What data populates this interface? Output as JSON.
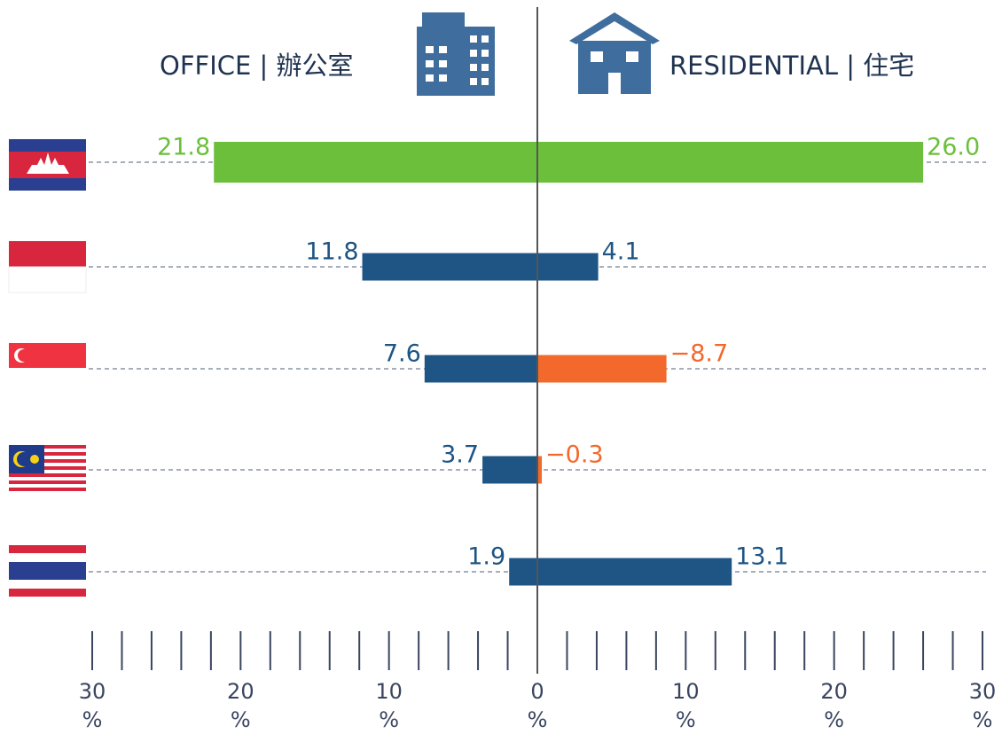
{
  "chart_data": {
    "type": "butterfly",
    "categories": [
      null,
      null,
      null,
      null,
      null
    ],
    "series": [
      {
        "name": "OFFICE | 辦公室",
        "axis": "x",
        "color": "#1e5585",
        "colors": [
          "#6bbf3b",
          "#1e5585",
          "#1e5585",
          "#1e5585",
          "#1e5585"
        ],
        "values": [
          21.8,
          11.8,
          7.6,
          3.7,
          1.9
        ],
        "value_labels": [
          "21.8",
          "11.8",
          "7.6",
          "3.7",
          "1.9"
        ]
      },
      {
        "name": "RESIDENTIAL | 住宅",
        "axis": "x2",
        "color": "#1e5585",
        "colors": [
          "#6bbf3b",
          "#1e5585",
          "#f2692b",
          "#f2692b",
          "#1e5585"
        ],
        "values": [
          26.0,
          4.1,
          -8.7,
          -0.3,
          13.1
        ],
        "value_labels": [
          "26.0",
          "4.1",
          "−8.7",
          "−0.3",
          "13.1"
        ]
      }
    ],
    "xlim": [
      30,
      0
    ],
    "xticks": [
      {
        "value": 30,
        "label": "30 %"
      },
      {
        "value": 20,
        "label": "20 %"
      },
      {
        "value": 10,
        "label": "10 %"
      },
      {
        "value": 0,
        "label": "0 %"
      }
    ],
    "xminorticks": [
      28,
      26,
      24,
      22,
      18,
      16,
      14,
      12,
      8,
      6,
      4,
      2
    ],
    "x2lim": [
      0,
      30
    ],
    "x2ticks": [
      {
        "value": 10,
        "label": "10 %"
      },
      {
        "value": 20,
        "label": "20 %"
      },
      {
        "value": 30,
        "label": "30 %"
      }
    ],
    "x2minorticks": [
      2,
      4,
      6,
      8,
      12,
      14,
      16,
      18,
      22,
      24,
      26,
      28
    ],
    "grid": true
  }
}
